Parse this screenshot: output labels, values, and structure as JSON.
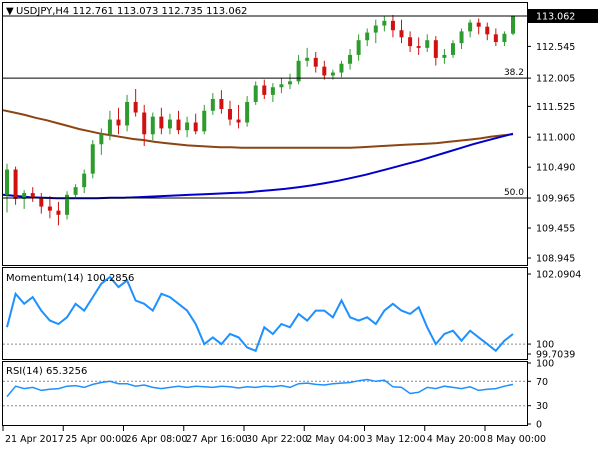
{
  "chart_header": {
    "arrow": "▼",
    "label": "USDJPY,H4  112.761 113.073 112.735 113.062"
  },
  "chart_data": [
    {
      "type": "candlestick",
      "symbol": "USDJPY",
      "timeframe": "H4",
      "ohlc_header": {
        "open": 112.761,
        "high": 113.073,
        "low": 112.735,
        "close": 113.062
      },
      "ylim": [
        108.945,
        113.062
      ],
      "y_ticks": [
        113.062,
        112.545,
        112.005,
        111.525,
        111.0,
        110.49,
        109.965,
        109.455,
        108.945
      ],
      "x_tick_labels": [
        "21 Apr 2017",
        "25 Apr 00:00",
        "26 Apr 08:00",
        "27 Apr 16:00",
        "30 Apr 22:00",
        "2 May 04:00",
        "3 May 12:00",
        "4 May 20:00",
        "8 May 00:00"
      ],
      "last_price": 113.062,
      "fib_levels": [
        {
          "label": "38.2",
          "value": 112.005
        },
        {
          "label": "50.0",
          "value": 109.965
        }
      ],
      "candles": [
        {
          "o": 110.02,
          "h": 110.55,
          "l": 109.72,
          "c": 110.45
        },
        {
          "o": 110.45,
          "h": 110.5,
          "l": 109.85,
          "c": 109.95
        },
        {
          "o": 109.95,
          "h": 110.1,
          "l": 109.78,
          "c": 110.05
        },
        {
          "o": 110.05,
          "h": 110.15,
          "l": 109.9,
          "c": 109.98
        },
        {
          "o": 109.98,
          "h": 110.05,
          "l": 109.7,
          "c": 109.82
        },
        {
          "o": 109.82,
          "h": 110.0,
          "l": 109.62,
          "c": 109.75
        },
        {
          "o": 109.75,
          "h": 109.9,
          "l": 109.5,
          "c": 109.68
        },
        {
          "o": 109.68,
          "h": 110.08,
          "l": 109.6,
          "c": 110.02
        },
        {
          "o": 110.02,
          "h": 110.2,
          "l": 109.95,
          "c": 110.15
        },
        {
          "o": 110.15,
          "h": 110.45,
          "l": 110.05,
          "c": 110.38
        },
        {
          "o": 110.38,
          "h": 110.95,
          "l": 110.3,
          "c": 110.88
        },
        {
          "o": 110.88,
          "h": 111.15,
          "l": 110.7,
          "c": 111.05
        },
        {
          "o": 111.05,
          "h": 111.45,
          "l": 110.95,
          "c": 111.3
        },
        {
          "o": 111.3,
          "h": 111.5,
          "l": 111.05,
          "c": 111.2
        },
        {
          "o": 111.2,
          "h": 111.72,
          "l": 111.1,
          "c": 111.6
        },
        {
          "o": 111.6,
          "h": 111.82,
          "l": 111.35,
          "c": 111.42
        },
        {
          "o": 111.42,
          "h": 111.55,
          "l": 110.85,
          "c": 111.05
        },
        {
          "o": 111.05,
          "h": 111.42,
          "l": 110.95,
          "c": 111.35
        },
        {
          "o": 111.35,
          "h": 111.5,
          "l": 111.05,
          "c": 111.15
        },
        {
          "o": 111.15,
          "h": 111.4,
          "l": 111.05,
          "c": 111.3
        },
        {
          "o": 111.3,
          "h": 111.45,
          "l": 111.05,
          "c": 111.12
        },
        {
          "o": 111.12,
          "h": 111.35,
          "l": 111.0,
          "c": 111.25
        },
        {
          "o": 111.25,
          "h": 111.4,
          "l": 111.05,
          "c": 111.1
        },
        {
          "o": 111.1,
          "h": 111.55,
          "l": 111.05,
          "c": 111.45
        },
        {
          "o": 111.45,
          "h": 111.75,
          "l": 111.38,
          "c": 111.65
        },
        {
          "o": 111.65,
          "h": 111.8,
          "l": 111.4,
          "c": 111.48
        },
        {
          "o": 111.48,
          "h": 111.62,
          "l": 111.2,
          "c": 111.3
        },
        {
          "o": 111.3,
          "h": 111.55,
          "l": 111.15,
          "c": 111.25
        },
        {
          "o": 111.25,
          "h": 111.7,
          "l": 111.18,
          "c": 111.6
        },
        {
          "o": 111.6,
          "h": 111.95,
          "l": 111.55,
          "c": 111.88
        },
        {
          "o": 111.88,
          "h": 111.98,
          "l": 111.65,
          "c": 111.72
        },
        {
          "o": 111.72,
          "h": 111.92,
          "l": 111.6,
          "c": 111.85
        },
        {
          "o": 111.85,
          "h": 112.0,
          "l": 111.75,
          "c": 111.9
        },
        {
          "o": 111.9,
          "h": 112.08,
          "l": 111.82,
          "c": 111.95
        },
        {
          "o": 111.95,
          "h": 112.4,
          "l": 111.9,
          "c": 112.3
        },
        {
          "o": 112.3,
          "h": 112.52,
          "l": 112.2,
          "c": 112.35
        },
        {
          "o": 112.35,
          "h": 112.45,
          "l": 112.1,
          "c": 112.2
        },
        {
          "o": 112.2,
          "h": 112.3,
          "l": 111.98,
          "c": 112.05
        },
        {
          "o": 112.05,
          "h": 112.15,
          "l": 111.98,
          "c": 112.1
        },
        {
          "o": 112.1,
          "h": 112.3,
          "l": 112.02,
          "c": 112.25
        },
        {
          "o": 112.25,
          "h": 112.5,
          "l": 112.15,
          "c": 112.4
        },
        {
          "o": 112.4,
          "h": 112.75,
          "l": 112.3,
          "c": 112.65
        },
        {
          "o": 112.65,
          "h": 112.85,
          "l": 112.55,
          "c": 112.78
        },
        {
          "o": 112.78,
          "h": 113.0,
          "l": 112.6,
          "c": 112.9
        },
        {
          "o": 112.9,
          "h": 113.07,
          "l": 112.8,
          "c": 112.98
        },
        {
          "o": 112.98,
          "h": 113.08,
          "l": 112.7,
          "c": 112.82
        },
        {
          "o": 112.82,
          "h": 113.0,
          "l": 112.6,
          "c": 112.7
        },
        {
          "o": 112.7,
          "h": 112.8,
          "l": 112.45,
          "c": 112.55
        },
        {
          "o": 112.55,
          "h": 112.7,
          "l": 112.4,
          "c": 112.52
        },
        {
          "o": 112.52,
          "h": 112.75,
          "l": 112.45,
          "c": 112.65
        },
        {
          "o": 112.65,
          "h": 112.72,
          "l": 112.22,
          "c": 112.35
        },
        {
          "o": 112.35,
          "h": 112.5,
          "l": 112.25,
          "c": 112.4
        },
        {
          "o": 112.4,
          "h": 112.65,
          "l": 112.35,
          "c": 112.6
        },
        {
          "o": 112.6,
          "h": 112.85,
          "l": 112.5,
          "c": 112.8
        },
        {
          "o": 112.8,
          "h": 113.0,
          "l": 112.7,
          "c": 112.95
        },
        {
          "o": 112.95,
          "h": 113.02,
          "l": 112.75,
          "c": 112.88
        },
        {
          "o": 112.88,
          "h": 112.95,
          "l": 112.65,
          "c": 112.75
        },
        {
          "o": 112.75,
          "h": 112.85,
          "l": 112.55,
          "c": 112.62
        },
        {
          "o": 112.62,
          "h": 112.8,
          "l": 112.55,
          "c": 112.76
        },
        {
          "o": 112.761,
          "h": 113.073,
          "l": 112.735,
          "c": 113.062
        }
      ],
      "series": [
        {
          "name": "",
          "color": "#8b4513",
          "values": [
            111.46,
            111.42,
            111.38,
            111.33,
            111.29,
            111.24,
            111.19,
            111.14,
            111.1,
            111.06,
            111.03,
            111.0,
            110.97,
            110.95,
            110.92,
            110.9,
            110.88,
            110.86,
            110.85,
            110.84,
            110.83,
            110.83,
            110.82,
            110.82,
            110.82,
            110.82,
            110.82,
            110.82,
            110.82,
            110.82,
            110.82,
            110.82,
            110.82,
            110.83,
            110.84,
            110.85,
            110.86,
            110.87,
            110.88,
            110.89,
            110.9,
            110.92,
            110.94,
            110.96,
            110.98,
            111.01,
            111.03,
            111.05
          ]
        },
        {
          "name": "",
          "color": "#0000cc",
          "values": [
            110.02,
            110.0,
            109.98,
            109.97,
            109.96,
            109.96,
            109.96,
            109.96,
            109.97,
            109.97,
            109.98,
            109.99,
            110.0,
            110.01,
            110.02,
            110.03,
            110.04,
            110.05,
            110.06,
            110.08,
            110.1,
            110.12,
            110.15,
            110.18,
            110.22,
            110.26,
            110.31,
            110.36,
            110.42,
            110.48,
            110.54,
            110.6,
            110.67,
            110.74,
            110.81,
            110.88,
            110.94,
            111.0,
            111.06
          ]
        }
      ]
    },
    {
      "type": "line",
      "name": "Momentum(14)",
      "label": "Momentum(14) 100.2856",
      "value": 100.2856,
      "ylim": [
        99.7039,
        102.0904
      ],
      "y_ticks": [
        102.0904,
        100,
        99.7039
      ],
      "reference_level": 100,
      "color": "#1e90ff",
      "values": [
        100.5,
        101.5,
        101.2,
        101.4,
        101.0,
        100.7,
        100.6,
        100.8,
        101.2,
        101.0,
        101.4,
        101.8,
        102.0,
        101.7,
        101.9,
        101.3,
        101.2,
        101.0,
        101.5,
        101.4,
        101.2,
        101.0,
        100.6,
        100.0,
        100.2,
        100.0,
        100.3,
        100.2,
        99.9,
        99.8,
        100.5,
        100.3,
        100.6,
        100.5,
        100.9,
        100.7,
        101.0,
        101.0,
        100.8,
        101.3,
        100.8,
        100.7,
        100.8,
        100.6,
        101.0,
        101.2,
        101.0,
        100.9,
        101.1,
        100.5,
        100.0,
        100.3,
        100.4,
        100.1,
        100.4,
        100.2,
        100.0,
        99.8,
        100.1,
        100.3
      ]
    },
    {
      "type": "line",
      "name": "RSI(14)",
      "label": "RSI(14) 65.3256",
      "value": 65.3256,
      "ylim": [
        0,
        100
      ],
      "y_ticks": [
        100,
        70,
        30,
        0
      ],
      "levels": [
        70,
        30
      ],
      "color": "#1e90ff",
      "values": [
        45,
        62,
        58,
        60,
        55,
        57,
        58,
        62,
        63,
        60,
        65,
        68,
        70,
        66,
        66,
        62,
        64,
        60,
        58,
        60,
        62,
        60,
        62,
        61,
        60,
        62,
        61,
        59,
        61,
        60,
        62,
        61,
        63,
        60,
        66,
        67,
        65,
        64,
        66,
        67,
        68,
        71,
        73,
        70,
        72,
        61,
        60,
        50,
        52,
        60,
        58,
        62,
        60,
        58,
        61,
        55,
        57,
        58,
        62,
        65
      ]
    }
  ]
}
